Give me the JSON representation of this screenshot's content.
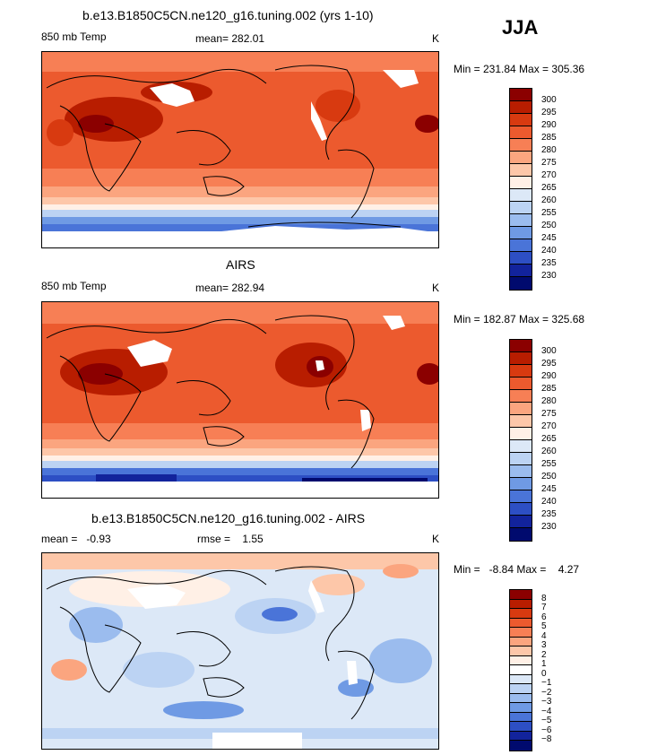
{
  "season": "JJA",
  "panels": [
    {
      "title": "b.e13.B1850C5CN.ne120_g16.tuning.002 (yrs 1-10)",
      "left_label": "850 mb Temp",
      "center_label": "mean= 282.01",
      "right_label": "K",
      "minmax": "Min = 231.84 Max = 305.36",
      "kind": "absolute"
    },
    {
      "title": "AIRS",
      "left_label": "850 mb Temp",
      "center_label": "mean= 282.94",
      "right_label": "K",
      "minmax": "Min = 182.87 Max = 325.68",
      "kind": "absolute"
    },
    {
      "title": "b.e13.B1850C5CN.ne120_g16.tuning.002 - AIRS",
      "left_label": "mean =   -0.93",
      "center_label": "rmse =    1.55",
      "right_label": "K",
      "minmax": "Min =   -8.84 Max =    4.27",
      "kind": "difference"
    }
  ],
  "colorbars": {
    "absolute": {
      "labels": [
        "300",
        "295",
        "290",
        "285",
        "280",
        "275",
        "270",
        "265",
        "260",
        "255",
        "250",
        "245",
        "240",
        "235",
        "230"
      ],
      "colors": [
        "#8b0000",
        "#b81d00",
        "#d83a10",
        "#ec5a2e",
        "#f77f55",
        "#fba57f",
        "#fdc7a9",
        "#fff0e6",
        "#dce8f7",
        "#bcd3f3",
        "#9bbcee",
        "#6f9ae4",
        "#4a74d8",
        "#2d4fc4",
        "#12239c",
        "#000a6e"
      ]
    },
    "difference": {
      "labels": [
        "8",
        "7",
        "6",
        "5",
        "4",
        "3",
        "2",
        "1",
        "0",
        "−1",
        "−2",
        "−3",
        "−4",
        "−5",
        "−6",
        "−8"
      ],
      "colors": [
        "#8b0000",
        "#b81d00",
        "#d83a10",
        "#ec5a2e",
        "#f77f55",
        "#fba57f",
        "#fdc7a9",
        "#fff0e6",
        "#ffffff",
        "#dce8f7",
        "#bcd3f3",
        "#9bbcee",
        "#6f9ae4",
        "#4a74d8",
        "#2d4fc4",
        "#12239c",
        "#000a6e"
      ]
    }
  }
}
